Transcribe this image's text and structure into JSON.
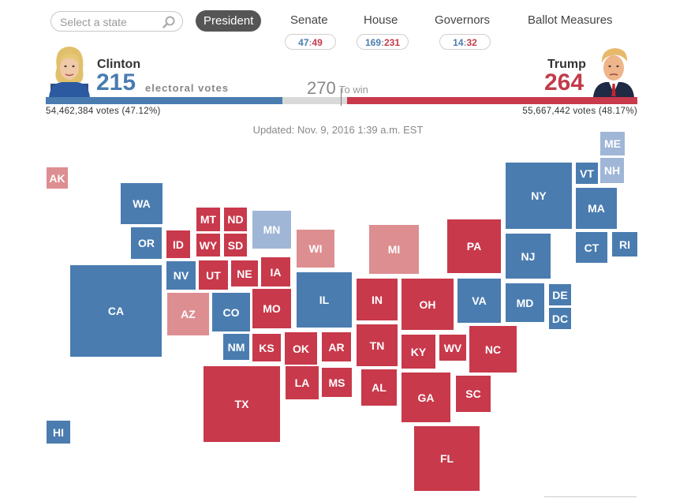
{
  "search": {
    "placeholder": "Select a state"
  },
  "tabs": [
    {
      "label": "President"
    },
    {
      "label": "Senate",
      "dem": "47",
      "rep": "49"
    },
    {
      "label": "House",
      "dem": "169",
      "rep": "231"
    },
    {
      "label": "Governors",
      "dem": "14",
      "rep": "32"
    },
    {
      "label": "Ballot Measures"
    }
  ],
  "colors": {
    "dem": "#4a7cb0",
    "rep": "#c8394b",
    "lean_dem": "#9fb6d6",
    "lean_rep": "#dd8e91",
    "undecided": "#d9d9d9"
  },
  "race": {
    "clinton": {
      "name": "Clinton",
      "ev": "215",
      "votes": "54,462,384 votes (47.12%)"
    },
    "trump": {
      "name": "Trump",
      "ev": "264",
      "votes": "55,667,442 votes (48.17%)"
    },
    "ev_label": "electoral votes",
    "to_win_num": "270",
    "to_win_label": "To win",
    "total_ev": 538,
    "updated": "Updated: Nov. 9, 2016 1:39 a.m. EST"
  },
  "states": [
    {
      "abbr": "AK",
      "status": "LR"
    },
    {
      "abbr": "HI",
      "status": "D"
    },
    {
      "abbr": "WA",
      "status": "D"
    },
    {
      "abbr": "OR",
      "status": "D"
    },
    {
      "abbr": "CA",
      "status": "D"
    },
    {
      "abbr": "ID",
      "status": "R"
    },
    {
      "abbr": "NV",
      "status": "D"
    },
    {
      "abbr": "AZ",
      "status": "LR"
    },
    {
      "abbr": "MT",
      "status": "R"
    },
    {
      "abbr": "ND",
      "status": "R"
    },
    {
      "abbr": "WY",
      "status": "R"
    },
    {
      "abbr": "SD",
      "status": "R"
    },
    {
      "abbr": "UT",
      "status": "R"
    },
    {
      "abbr": "NE",
      "status": "R"
    },
    {
      "abbr": "CO",
      "status": "D"
    },
    {
      "abbr": "NM",
      "status": "D"
    },
    {
      "abbr": "KS",
      "status": "R"
    },
    {
      "abbr": "MN",
      "status": "LD"
    },
    {
      "abbr": "IA",
      "status": "R"
    },
    {
      "abbr": "MO",
      "status": "R"
    },
    {
      "abbr": "OK",
      "status": "R"
    },
    {
      "abbr": "AR",
      "status": "R"
    },
    {
      "abbr": "TX",
      "status": "R"
    },
    {
      "abbr": "LA",
      "status": "R"
    },
    {
      "abbr": "MS",
      "status": "R"
    },
    {
      "abbr": "WI",
      "status": "LR"
    },
    {
      "abbr": "IL",
      "status": "D"
    },
    {
      "abbr": "MI",
      "status": "LR"
    },
    {
      "abbr": "IN",
      "status": "R"
    },
    {
      "abbr": "OH",
      "status": "R"
    },
    {
      "abbr": "KY",
      "status": "R"
    },
    {
      "abbr": "TN",
      "status": "R"
    },
    {
      "abbr": "AL",
      "status": "R"
    },
    {
      "abbr": "GA",
      "status": "R"
    },
    {
      "abbr": "FL",
      "status": "R"
    },
    {
      "abbr": "WV",
      "status": "R"
    },
    {
      "abbr": "PA",
      "status": "R"
    },
    {
      "abbr": "VA",
      "status": "D"
    },
    {
      "abbr": "NC",
      "status": "R"
    },
    {
      "abbr": "SC",
      "status": "R"
    },
    {
      "abbr": "NY",
      "status": "D"
    },
    {
      "abbr": "NJ",
      "status": "D"
    },
    {
      "abbr": "MD",
      "status": "D"
    },
    {
      "abbr": "DE",
      "status": "D"
    },
    {
      "abbr": "DC",
      "status": "D"
    },
    {
      "abbr": "VT",
      "status": "D"
    },
    {
      "abbr": "NH",
      "status": "LD"
    },
    {
      "abbr": "ME",
      "status": "LD"
    },
    {
      "abbr": "MA",
      "status": "D"
    },
    {
      "abbr": "CT",
      "status": "D"
    },
    {
      "abbr": "RI",
      "status": "D"
    }
  ]
}
